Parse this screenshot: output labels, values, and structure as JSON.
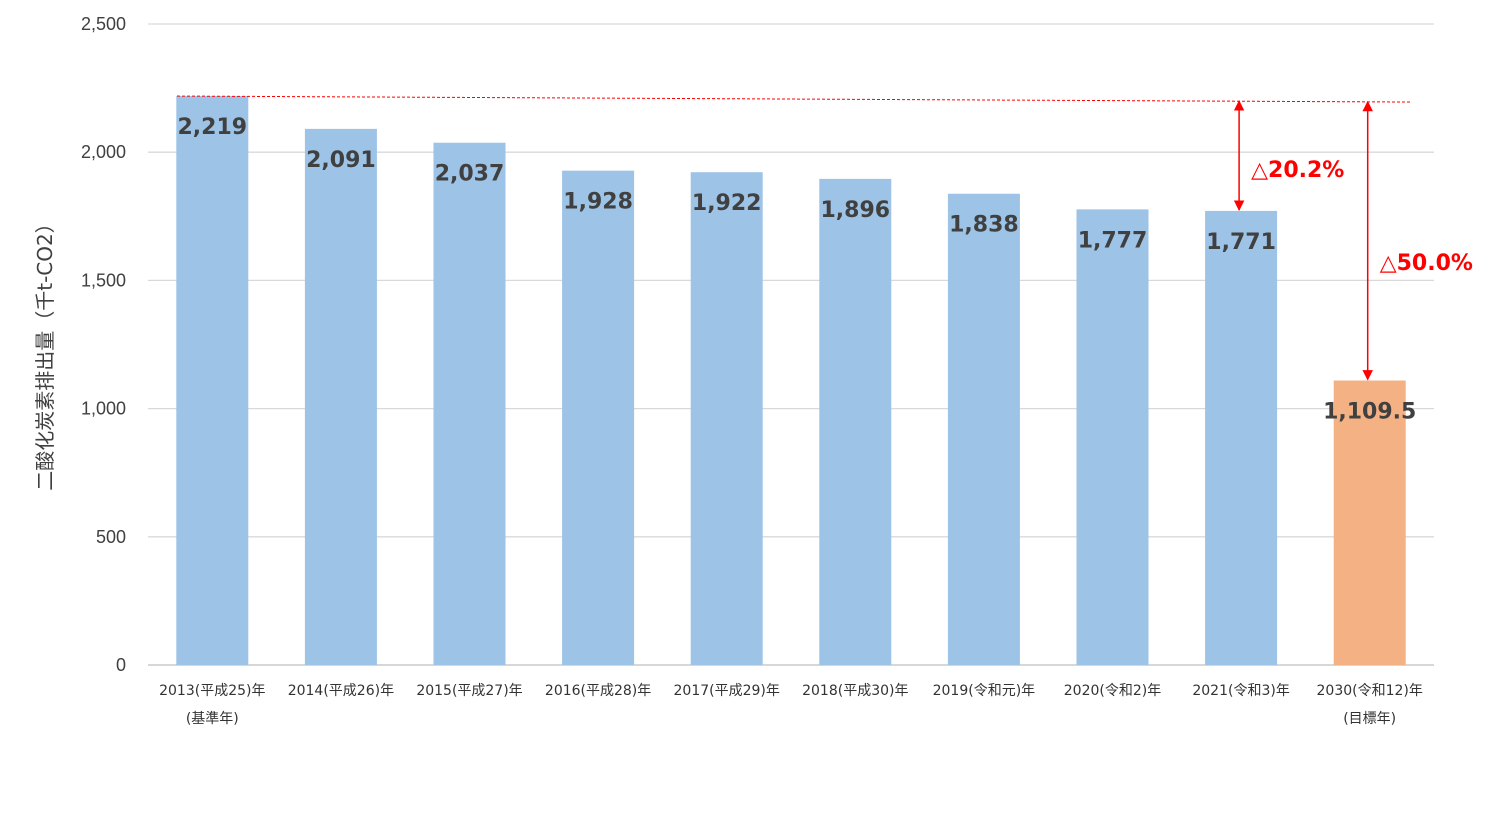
{
  "chart_data": {
    "type": "bar",
    "ylabel": "二酸化炭素排出量（千t-CO2）",
    "ylim": [
      0,
      2500
    ],
    "yticks": [
      0,
      500,
      1000,
      1500,
      2000,
      2500
    ],
    "ytick_labels": [
      "0",
      "500",
      "1,000",
      "1,500",
      "2,000",
      "2,500"
    ],
    "grid": true,
    "categories": [
      {
        "line1": "2013(平成25)年",
        "line2": "(基準年)"
      },
      {
        "line1": "2014(平成26)年",
        "line2": ""
      },
      {
        "line1": "2015(平成27)年",
        "line2": ""
      },
      {
        "line1": "2016(平成28)年",
        "line2": ""
      },
      {
        "line1": "2017(平成29)年",
        "line2": ""
      },
      {
        "line1": "2018(平成30)年",
        "line2": ""
      },
      {
        "line1": "2019(令和元)年",
        "line2": ""
      },
      {
        "line1": "2020(令和2)年",
        "line2": ""
      },
      {
        "line1": "2021(令和3)年",
        "line2": ""
      },
      {
        "line1": "2030(令和12)年",
        "line2": "(目標年)"
      }
    ],
    "values": [
      2219,
      2091,
      2037,
      1928,
      1922,
      1896,
      1838,
      1777,
      1771,
      1109.5
    ],
    "value_labels": [
      "2,219",
      "2,091",
      "2,037",
      "1,928",
      "1,922",
      "1,896",
      "1,838",
      "1,777",
      "1,771",
      "1,109.5"
    ],
    "colors": {
      "actual": "#9DC3E6",
      "target": "#F4B183",
      "annotation": "#FF0000",
      "grid": "#D9D9D9",
      "text": "#404040"
    },
    "target_index": 9,
    "reference_line": {
      "value": 2219,
      "style": "dashed",
      "color": "#FF0000"
    },
    "annotations": [
      {
        "text": "△20.2%",
        "bar_index": 8
      },
      {
        "text": "△50.0%",
        "bar_index": 9
      }
    ]
  }
}
